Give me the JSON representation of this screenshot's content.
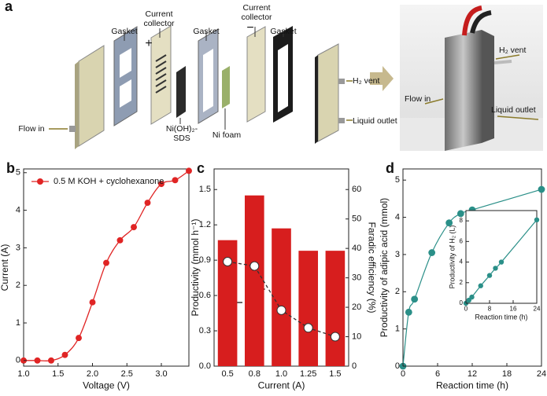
{
  "diagram": {
    "panel_label": "a",
    "labels": [
      "Gasket",
      "Current collector",
      "+",
      "Gasket",
      "−",
      "Current collector",
      "Gasket",
      "Flow in",
      "Ni(OH)₂-SDS",
      "Ni foam",
      "H₂ vent",
      "Liquid outlet",
      "H₂ vent",
      "Flow in",
      "Liquid outlet"
    ]
  },
  "chart_data": [
    {
      "type": "line",
      "panel_label": "b",
      "xlabel": "Voltage (V)",
      "ylabel": "Current (A)",
      "x": [
        1.0,
        1.2,
        1.4,
        1.6,
        1.8,
        2.0,
        2.2,
        2.4,
        2.6,
        2.8,
        3.0,
        3.2,
        3.4
      ],
      "series": [
        {
          "name": "0.5 M KOH + cyclohexanone",
          "color": "#e02424",
          "values": [
            0,
            0,
            0,
            0.15,
            0.6,
            1.55,
            2.6,
            3.2,
            3.55,
            4.2,
            4.7,
            4.8,
            5.05
          ]
        }
      ],
      "xlim": [
        1.0,
        3.4
      ],
      "ylim": [
        -0.15,
        5.1
      ],
      "xticks": [
        {
          "value": 1,
          "label": "1.0"
        },
        1.5,
        {
          "value": 2,
          "label": "2.0"
        },
        2.5,
        {
          "value": 3,
          "label": "3.0"
        }
      ],
      "yticks": [
        0,
        1,
        2,
        3,
        4,
        5
      ],
      "legend": "upper left"
    },
    {
      "type": "bar",
      "panel_label": "c",
      "xlabel": "Current (A)",
      "ylabel": "Productivity (mmol h⁻¹)",
      "y2label": "Faradic efficiency (%)",
      "categories": [
        "0.5",
        "0.8",
        "1.0",
        "1.25",
        "1.5"
      ],
      "series": [
        {
          "color": "#d71e1e",
          "values": [
            1.07,
            1.45,
            1.17,
            0.98,
            0.98
          ]
        },
        {
          "axis": "y2",
          "type": "line",
          "color": "#333333",
          "marker_fill": "#ffffff",
          "dashed": true,
          "values": [
            35.5,
            34,
            19,
            13,
            10
          ]
        }
      ],
      "ylim": [
        0,
        1.675
      ],
      "yticks": [
        {
          "value": 0,
          "label": "0.0"
        },
        0.3,
        0.6,
        0.9,
        1.2,
        1.5
      ],
      "y2lim": [
        0,
        67
      ],
      "y2ticks": [
        0,
        10,
        20,
        30,
        40,
        50,
        60
      ]
    },
    {
      "type": "scatter",
      "panel_label": "d",
      "xlabel": "Reaction time (h)",
      "ylabel": "Productivity of adipic acid (mmol)",
      "x": [
        0,
        1,
        2,
        5,
        8,
        10,
        12,
        24
      ],
      "series": [
        {
          "color": "#2a8f88",
          "values": [
            0,
            1.45,
            1.8,
            3.05,
            3.85,
            4.1,
            4.2,
            4.75
          ]
        }
      ],
      "fit_line": true,
      "xlim": [
        0,
        24
      ],
      "ylim": [
        0,
        5.3
      ],
      "xticks": [
        0,
        6,
        12,
        18,
        24
      ],
      "yticks": [
        0,
        1,
        2,
        3,
        4,
        5
      ],
      "inset": {
        "type": "scatter",
        "xlabel": "Reaction time (h)",
        "ylabel": "Productivity of H₂ (L)",
        "x": [
          0,
          1,
          2,
          5,
          8,
          10,
          12,
          24
        ],
        "series": [
          {
            "color": "#2a8f88",
            "values": [
              0,
              0.3,
              0.6,
              1.7,
              2.7,
              3.4,
              4.0,
              8.1
            ]
          }
        ],
        "fit_line": true,
        "xlim": [
          0,
          24
        ],
        "ylim": [
          0,
          9
        ],
        "xticks": [
          0,
          8,
          16,
          24
        ],
        "yticks": [
          0,
          2,
          4,
          6,
          8
        ]
      }
    }
  ]
}
